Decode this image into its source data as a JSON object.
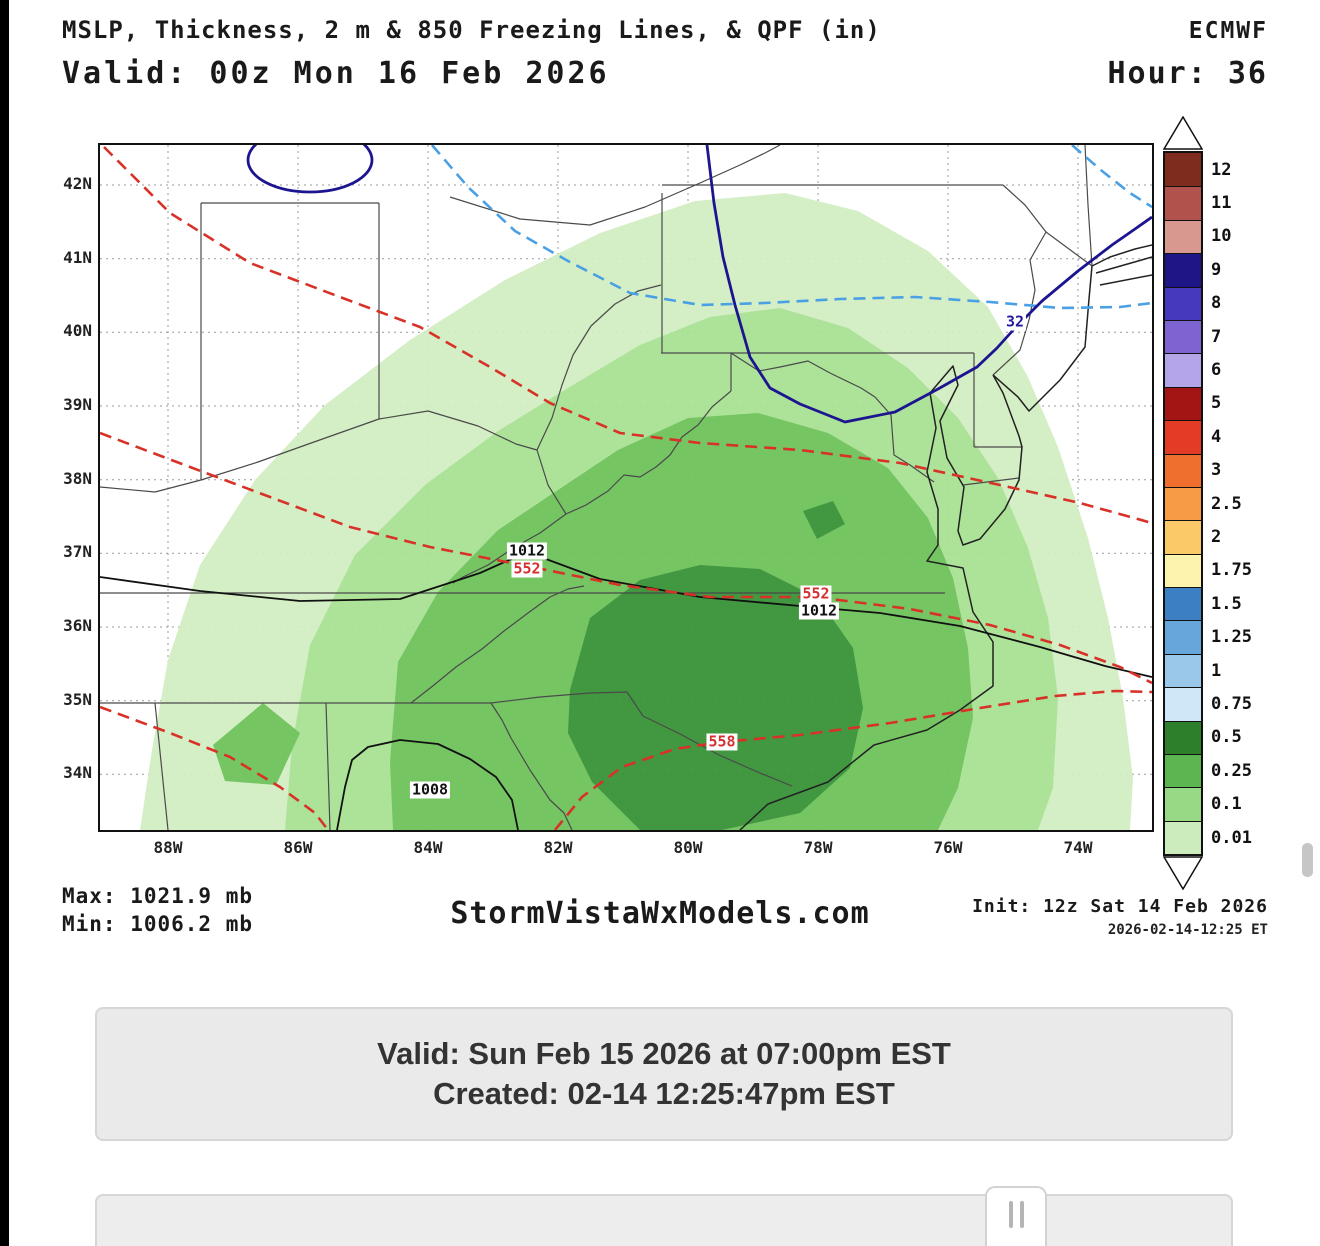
{
  "header": {
    "title": "MSLP, Thickness, 2 m & 850 Freezing Lines, & QPF (in)",
    "valid": "Valid: 00z Mon 16 Feb 2026",
    "model": "ECMWF",
    "hour": "Hour: 36"
  },
  "map": {
    "lat_ticks": [
      "42N",
      "41N",
      "40N",
      "39N",
      "38N",
      "37N",
      "36N",
      "35N",
      "34N"
    ],
    "lon_ticks": [
      "88W",
      "86W",
      "84W",
      "82W",
      "80W",
      "78W",
      "76W",
      "74W"
    ],
    "labels": {
      "mslp_1012_a": "1012",
      "mslp_1012_b": "1012",
      "mslp_1008": "1008",
      "thickness_552_a": "552",
      "thickness_552_b": "552",
      "thickness_558": "558",
      "freezing_32": "32"
    }
  },
  "colorbar": {
    "entries": [
      {
        "value": "12",
        "color": "#7e2c1e"
      },
      {
        "value": "11",
        "color": "#b2524c"
      },
      {
        "value": "10",
        "color": "#d89890"
      },
      {
        "value": "9",
        "color": "#1e1687"
      },
      {
        "value": "8",
        "color": "#4739bd"
      },
      {
        "value": "7",
        "color": "#7d64d1"
      },
      {
        "value": "6",
        "color": "#b3a5e7"
      },
      {
        "value": "5",
        "color": "#a31515"
      },
      {
        "value": "4",
        "color": "#e23b26"
      },
      {
        "value": "3",
        "color": "#ee6f2e"
      },
      {
        "value": "2.5",
        "color": "#f79c44"
      },
      {
        "value": "2",
        "color": "#fbc967"
      },
      {
        "value": "1.75",
        "color": "#fdf2ae"
      },
      {
        "value": "1.5",
        "color": "#3c80c3"
      },
      {
        "value": "1.25",
        "color": "#67a6da"
      },
      {
        "value": "1",
        "color": "#9ac8ea"
      },
      {
        "value": "0.75",
        "color": "#cfe7f6"
      },
      {
        "value": "0.5",
        "color": "#2e7f2c"
      },
      {
        "value": "0.25",
        "color": "#5cb551"
      },
      {
        "value": "0.1",
        "color": "#97d985"
      },
      {
        "value": "0.01",
        "color": "#ccecbd"
      }
    ]
  },
  "footer": {
    "max": "Max: 1021.9 mb",
    "min": "Min: 1006.2 mb",
    "site": "StormVistaWxModels.com",
    "init": "Init: 12z Sat 14 Feb 2026",
    "created": "2026-02-14-12:25 ET"
  },
  "info": {
    "valid_line": "Valid: Sun Feb 15 2026 at 07:00pm EST",
    "created_line": "Created: 02-14 12:25:47pm EST"
  }
}
